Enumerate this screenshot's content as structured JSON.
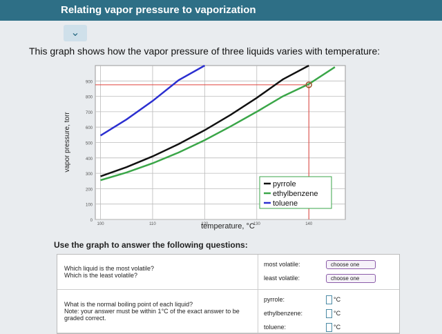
{
  "header": {
    "title": "Relating vapor pressure to vaporization"
  },
  "intro": "This graph shows how the vapor pressure of three liquids varies with temperature:",
  "chart_data": {
    "type": "line",
    "xlabel": "temperature, °C",
    "ylabel": "vapor pressure, torr",
    "x": [
      100,
      105,
      110,
      115,
      120,
      125,
      130,
      135,
      140,
      145
    ],
    "series": [
      {
        "name": "pyrrole",
        "color": "#111111",
        "values": [
          280,
          340,
          410,
          490,
          580,
          680,
          790,
          910,
          1000,
          null
        ]
      },
      {
        "name": "ethylbenzene",
        "color": "#3aa648",
        "values": [
          255,
          305,
          365,
          435,
          515,
          605,
          700,
          800,
          880,
          990
        ]
      },
      {
        "name": "toluene",
        "color": "#2b2fd0",
        "values": [
          545,
          650,
          770,
          905,
          1000,
          null,
          null,
          null,
          null,
          null
        ]
      }
    ],
    "xlim": [
      99,
      147
    ],
    "ylim": [
      0,
      1000
    ],
    "xticks": [
      100,
      110,
      120,
      130,
      140
    ],
    "yticks": [
      0,
      100,
      200,
      300,
      400,
      500,
      600,
      700,
      800,
      900
    ],
    "grid": true,
    "legend": "lower right",
    "marker": {
      "x": 140,
      "y": 875,
      "color": "#e0403a"
    }
  },
  "instructions": "Use the graph to answer the following questions:",
  "table": {
    "rows": [
      {
        "question": [
          "Which liquid is the most volatile?",
          "Which is the least volatile?"
        ],
        "fields": [
          {
            "label": "most volatile:",
            "select": "choose one"
          },
          {
            "label": "least volatile:",
            "select": "choose one"
          }
        ]
      },
      {
        "question": [
          "What is the normal boiling point of each liquid?",
          "Note: your answer must be within 1°C of the exact answer to be graded correct."
        ],
        "fields": [
          {
            "label": "pyrrole:",
            "unit": "°C"
          },
          {
            "label": "ethylbenzene:",
            "unit": "°C"
          },
          {
            "label": "toluene:",
            "unit": "°C"
          }
        ]
      }
    ]
  }
}
